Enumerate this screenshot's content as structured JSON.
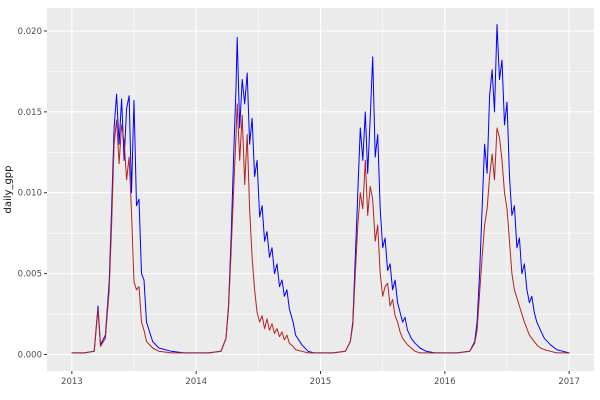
{
  "chart_data": {
    "type": "line",
    "title": "",
    "xlabel": "",
    "ylabel": "daily_gpp",
    "legend": "none",
    "grid": true,
    "xlim": [
      2012.8,
      2017.2
    ],
    "ylim": [
      -0.00102,
      0.02142
    ],
    "x_ticks": [
      2013,
      2014,
      2015,
      2016,
      2017
    ],
    "x_tick_labels": [
      "2013",
      "2014",
      "2015",
      "2016",
      "2017"
    ],
    "x_minor": [
      2013.5,
      2014.5,
      2015.5,
      2016.5
    ],
    "y_ticks": [
      0.0,
      0.005,
      0.01,
      0.015,
      0.02
    ],
    "y_tick_labels": [
      "0.000",
      "0.005",
      "0.010",
      "0.015",
      "0.020"
    ],
    "y_minor": [
      0.0025,
      0.0075,
      0.0125,
      0.0175
    ],
    "theme": {
      "panel_bg": "#EBEBEB",
      "grid_color": "#FFFFFF",
      "tick_color": "#333333"
    },
    "x": [
      2013.0,
      2013.1,
      2013.18,
      2013.21,
      2013.23,
      2013.27,
      2013.3,
      2013.32,
      2013.34,
      2013.36,
      2013.38,
      2013.4,
      2013.42,
      2013.44,
      2013.46,
      2013.48,
      2013.5,
      2013.52,
      2013.54,
      2013.56,
      2013.58,
      2013.6,
      2013.65,
      2013.7,
      2013.8,
      2013.9,
      2014.0,
      2014.1,
      2014.2,
      2014.24,
      2014.26,
      2014.28,
      2014.3,
      2014.32,
      2014.33,
      2014.35,
      2014.37,
      2014.39,
      2014.41,
      2014.43,
      2014.45,
      2014.47,
      2014.49,
      2014.51,
      2014.53,
      2014.55,
      2014.57,
      2014.59,
      2014.61,
      2014.63,
      2014.65,
      2014.67,
      2014.69,
      2014.71,
      2014.73,
      2014.75,
      2014.78,
      2014.8,
      2014.85,
      2014.9,
      2014.95,
      2015.0,
      2015.1,
      2015.2,
      2015.24,
      2015.26,
      2015.28,
      2015.3,
      2015.32,
      2015.34,
      2015.36,
      2015.38,
      2015.4,
      2015.42,
      2015.44,
      2015.46,
      2015.48,
      2015.5,
      2015.52,
      2015.54,
      2015.56,
      2015.58,
      2015.6,
      2015.62,
      2015.64,
      2015.66,
      2015.68,
      2015.7,
      2015.73,
      2015.76,
      2015.8,
      2015.85,
      2015.92,
      2016.0,
      2016.1,
      2016.2,
      2016.24,
      2016.26,
      2016.28,
      2016.3,
      2016.32,
      2016.34,
      2016.36,
      2016.38,
      2016.4,
      2016.42,
      2016.44,
      2016.46,
      2016.48,
      2016.5,
      2016.52,
      2016.54,
      2016.56,
      2016.58,
      2016.6,
      2016.62,
      2016.64,
      2016.66,
      2016.68,
      2016.7,
      2016.72,
      2016.74,
      2016.77,
      2016.8,
      2016.85,
      2016.9,
      2016.95,
      2017.0
    ],
    "series": [
      {
        "name": "blue",
        "color": "#0000FF",
        "values": [
          0.0001,
          0.0001,
          0.0002,
          0.003,
          0.0006,
          0.0012,
          0.0045,
          0.009,
          0.014,
          0.0161,
          0.013,
          0.0158,
          0.012,
          0.0152,
          0.016,
          0.01,
          0.0157,
          0.0092,
          0.0096,
          0.005,
          0.0046,
          0.002,
          0.0008,
          0.0004,
          0.0002,
          0.0001,
          0.0001,
          0.0001,
          0.0002,
          0.001,
          0.003,
          0.007,
          0.012,
          0.0165,
          0.0196,
          0.014,
          0.017,
          0.0155,
          0.0174,
          0.013,
          0.0146,
          0.011,
          0.012,
          0.0085,
          0.0092,
          0.007,
          0.0076,
          0.006,
          0.0066,
          0.005,
          0.0056,
          0.0042,
          0.0046,
          0.0036,
          0.004,
          0.0028,
          0.002,
          0.0012,
          0.0006,
          0.0002,
          0.0001,
          0.0001,
          0.0001,
          0.0002,
          0.0008,
          0.002,
          0.006,
          0.01,
          0.014,
          0.012,
          0.015,
          0.0112,
          0.0146,
          0.0184,
          0.0122,
          0.0136,
          0.009,
          0.0066,
          0.0072,
          0.0052,
          0.0056,
          0.004,
          0.0046,
          0.0032,
          0.0026,
          0.002,
          0.0023,
          0.0015,
          0.001,
          0.0007,
          0.0004,
          0.0002,
          0.0001,
          0.0001,
          0.0001,
          0.0002,
          0.0008,
          0.002,
          0.005,
          0.009,
          0.013,
          0.0112,
          0.016,
          0.0176,
          0.015,
          0.0204,
          0.017,
          0.0182,
          0.0142,
          0.0156,
          0.011,
          0.0086,
          0.0092,
          0.0066,
          0.0072,
          0.005,
          0.0056,
          0.004,
          0.0032,
          0.0036,
          0.0026,
          0.002,
          0.0015,
          0.001,
          0.0006,
          0.0003,
          0.0002,
          0.0001
        ]
      },
      {
        "name": "red",
        "color": "#B22222",
        "values": [
          0.0001,
          0.0001,
          0.0002,
          0.0028,
          0.0005,
          0.001,
          0.004,
          0.008,
          0.013,
          0.0145,
          0.0118,
          0.0142,
          0.0132,
          0.0108,
          0.0122,
          0.0088,
          0.0045,
          0.004,
          0.0042,
          0.002,
          0.0015,
          0.0008,
          0.0004,
          0.0002,
          0.0001,
          0.0001,
          0.0001,
          0.0001,
          0.0002,
          0.001,
          0.0028,
          0.0062,
          0.01,
          0.0135,
          0.0155,
          0.012,
          0.0148,
          0.0105,
          0.0136,
          0.009,
          0.006,
          0.004,
          0.0026,
          0.002,
          0.0024,
          0.0016,
          0.0022,
          0.0015,
          0.0019,
          0.0013,
          0.0016,
          0.0011,
          0.0014,
          0.0009,
          0.0012,
          0.0007,
          0.0005,
          0.0003,
          0.0002,
          0.0001,
          0.0001,
          0.0001,
          0.0001,
          0.0002,
          0.0008,
          0.0018,
          0.005,
          0.008,
          0.01,
          0.009,
          0.012,
          0.0086,
          0.0104,
          0.0096,
          0.007,
          0.008,
          0.005,
          0.0036,
          0.0042,
          0.0044,
          0.003,
          0.0034,
          0.0024,
          0.002,
          0.0014,
          0.001,
          0.0008,
          0.0006,
          0.0004,
          0.0002,
          0.0001,
          0.0001,
          0.0001,
          0.0001,
          0.0001,
          0.0002,
          0.0007,
          0.0015,
          0.0038,
          0.006,
          0.008,
          0.009,
          0.011,
          0.0124,
          0.0108,
          0.014,
          0.0134,
          0.012,
          0.01,
          0.009,
          0.007,
          0.005,
          0.004,
          0.0035,
          0.003,
          0.0025,
          0.002,
          0.0016,
          0.0012,
          0.001,
          0.0008,
          0.0006,
          0.0004,
          0.0003,
          0.0002,
          0.0001,
          0.0001,
          0.0001
        ]
      }
    ]
  }
}
